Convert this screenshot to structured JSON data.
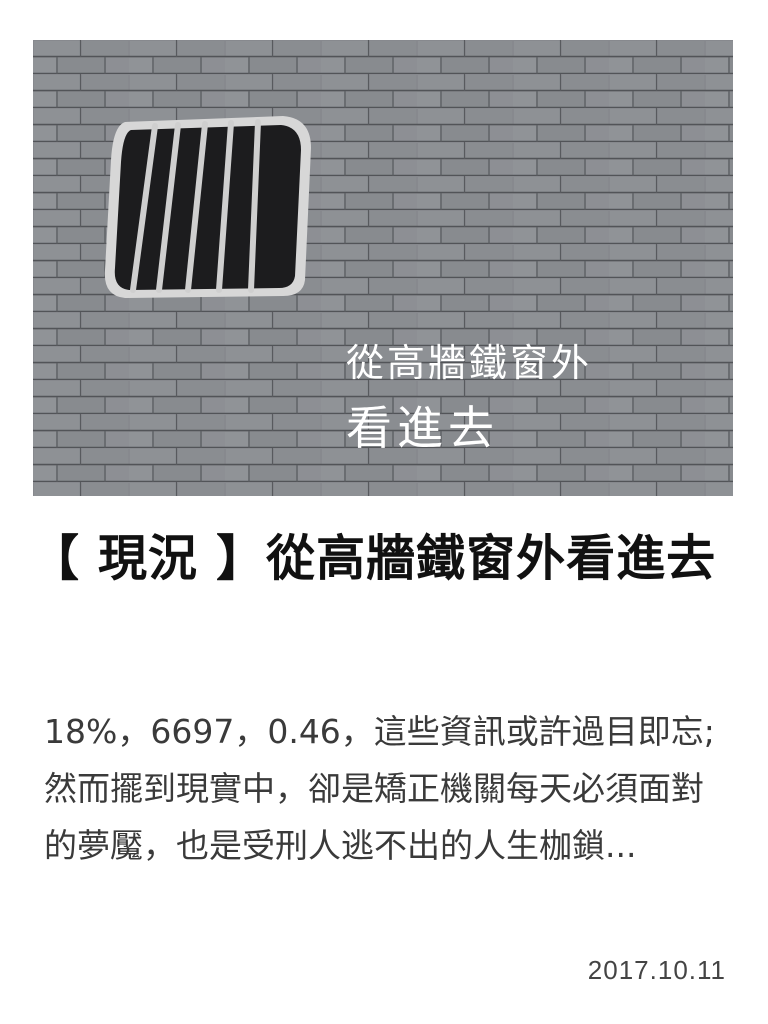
{
  "article": {
    "image": {
      "caption_line1": "從高牆鐵窗外",
      "caption_line2": "看進去",
      "icon": "barred-window-icon"
    },
    "headline": "【 現況 】從高牆鐵窗外看進去",
    "excerpt": "18%，6697，0.46，這些資訊或許過目即忘; 然而擺到現實中，卻是矯正機關每天必須面對的夢魘，也是受刑人逃不出的人生枷鎖...",
    "date": "2017.10.11"
  },
  "colors": {
    "wall": "#8a8d91",
    "window": "#1c1c1e",
    "headline": "#111111",
    "body": "#3a3a3a"
  }
}
